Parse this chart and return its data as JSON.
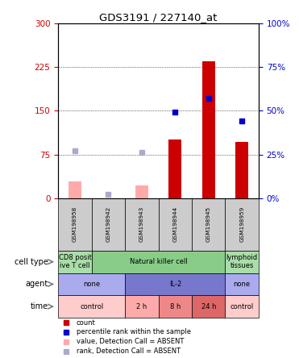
{
  "title": "GDS3191 / 227140_at",
  "samples": [
    "GSM198958",
    "GSM198942",
    "GSM198943",
    "GSM198944",
    "GSM198945",
    "GSM198959"
  ],
  "count_values": [
    null,
    null,
    null,
    100,
    235,
    97
  ],
  "count_absent_values": [
    28,
    null,
    22,
    null,
    null,
    null
  ],
  "percentile_values": [
    null,
    null,
    null,
    49,
    57,
    44
  ],
  "percentile_absent_values": [
    27,
    2,
    26,
    null,
    null,
    null
  ],
  "ylim_left": [
    0,
    300
  ],
  "ylim_right": [
    0,
    100
  ],
  "yticks_left": [
    0,
    75,
    150,
    225,
    300
  ],
  "yticks_right": [
    0,
    25,
    50,
    75,
    100
  ],
  "ytick_labels_left": [
    "0",
    "75",
    "150",
    "225",
    "300"
  ],
  "ytick_labels_right": [
    "0%",
    "25%",
    "50%",
    "75%",
    "100%"
  ],
  "bar_color_count": "#cc0000",
  "bar_color_absent": "#ffaaaa",
  "dot_color_present": "#0000cc",
  "dot_color_absent": "#aaaacc",
  "left_axis_color": "#cc0000",
  "right_axis_color": "#0000cc",
  "plot_bg": "#ffffff",
  "sample_bg": "#cccccc",
  "cell_type_cells": [
    {
      "label": "CD8 posit\nive T cell",
      "color": "#aaddaa",
      "span": [
        0,
        1
      ]
    },
    {
      "label": "Natural killer cell",
      "color": "#88cc88",
      "span": [
        1,
        5
      ]
    },
    {
      "label": "lymphoid\ntissues",
      "color": "#aaddaa",
      "span": [
        5,
        6
      ]
    }
  ],
  "agent_cells": [
    {
      "label": "none",
      "color": "#aaaaee",
      "span": [
        0,
        2
      ]
    },
    {
      "label": "IL-2",
      "color": "#7777cc",
      "span": [
        2,
        5
      ]
    },
    {
      "label": "none",
      "color": "#aaaaee",
      "span": [
        5,
        6
      ]
    }
  ],
  "time_cells": [
    {
      "label": "control",
      "color": "#ffcccc",
      "span": [
        0,
        2
      ]
    },
    {
      "label": "2 h",
      "color": "#ffaaaa",
      "span": [
        2,
        3
      ]
    },
    {
      "label": "8 h",
      "color": "#ee8888",
      "span": [
        3,
        4
      ]
    },
    {
      "label": "24 h",
      "color": "#dd6666",
      "span": [
        4,
        5
      ]
    },
    {
      "label": "control",
      "color": "#ffcccc",
      "span": [
        5,
        6
      ]
    }
  ],
  "row_labels": [
    "cell type",
    "agent",
    "time"
  ],
  "legend": [
    {
      "color": "#cc0000",
      "label": "count"
    },
    {
      "color": "#0000cc",
      "label": "percentile rank within the sample"
    },
    {
      "color": "#ffaaaa",
      "label": "value, Detection Call = ABSENT"
    },
    {
      "color": "#aaaacc",
      "label": "rank, Detection Call = ABSENT"
    }
  ]
}
